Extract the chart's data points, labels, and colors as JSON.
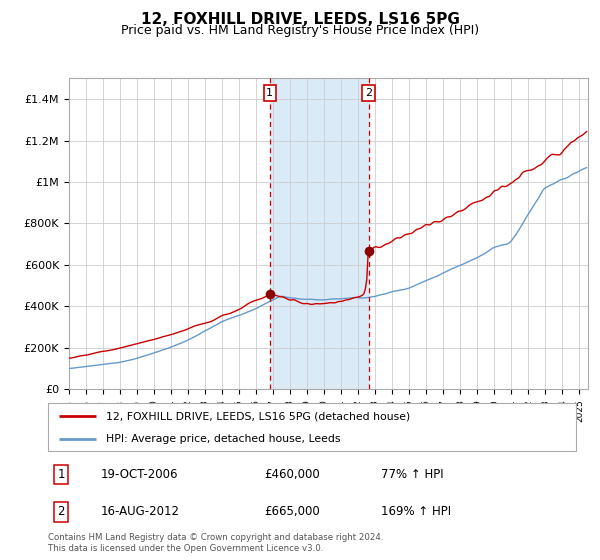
{
  "title": "12, FOXHILL DRIVE, LEEDS, LS16 5PG",
  "subtitle": "Price paid vs. HM Land Registry's House Price Index (HPI)",
  "title_fontsize": 11,
  "subtitle_fontsize": 9,
  "ylim": [
    0,
    1500000
  ],
  "yticks": [
    0,
    200000,
    400000,
    600000,
    800000,
    1000000,
    1200000,
    1400000
  ],
  "ytick_labels": [
    "£0",
    "£200K",
    "£400K",
    "£600K",
    "£800K",
    "£1M",
    "£1.2M",
    "£1.4M"
  ],
  "line1_color": "#cc0000",
  "line2_color": "#6699cc",
  "marker_color": "#8b0000",
  "sale1_date": "19-OCT-2006",
  "sale1_price": 460000,
  "sale2_date": "16-AUG-2012",
  "sale2_price": 665000,
  "sale1_hpi": "77% ↑ HPI",
  "sale2_hpi": "169% ↑ HPI",
  "sale1_x": 2006.8,
  "sale2_x": 2012.62,
  "shade_color": "#daeaf7",
  "vline_color": "#cc0000",
  "legend1_label": "12, FOXHILL DRIVE, LEEDS, LS16 5PG (detached house)",
  "legend2_label": "HPI: Average price, detached house, Leeds",
  "footer": "Contains HM Land Registry data © Crown copyright and database right 2024.\nThis data is licensed under the Open Government Licence v3.0.",
  "background_color": "#ffffff",
  "grid_color": "#cccccc",
  "xmin": 1995,
  "xmax": 2025.5
}
